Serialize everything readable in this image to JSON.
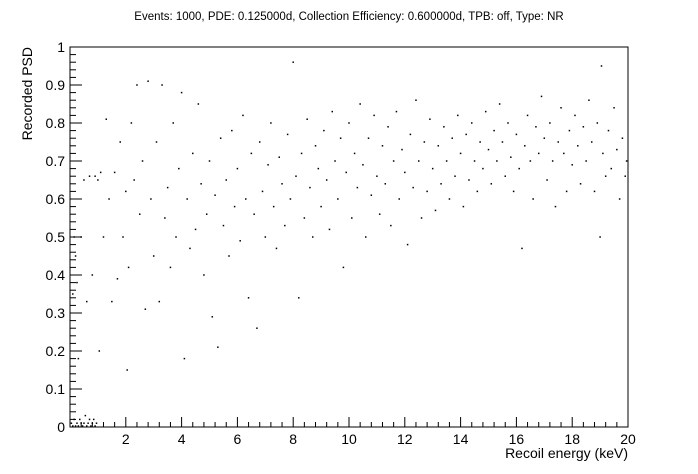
{
  "chart_data": {
    "type": "scatter",
    "title": "Events: 1000, PDE: 0.125000d, Collection Efficiency: 0.600000d, TPB: off, Type: NR",
    "xlabel": "Recoil energy (keV)",
    "ylabel": "Recorded PSD",
    "xlim": [
      0,
      20
    ],
    "ylim": [
      0,
      1
    ],
    "x_ticks": [
      {
        "value": 2,
        "label": "2"
      },
      {
        "value": 4,
        "label": "4"
      },
      {
        "value": 6,
        "label": "6"
      },
      {
        "value": 8,
        "label": "8"
      },
      {
        "value": 10,
        "label": "10"
      },
      {
        "value": 12,
        "label": "12"
      },
      {
        "value": 14,
        "label": "14"
      },
      {
        "value": 16,
        "label": "16"
      },
      {
        "value": 18,
        "label": "18"
      },
      {
        "value": 20,
        "label": "20"
      }
    ],
    "y_ticks": [
      {
        "value": 0,
        "label": "0"
      },
      {
        "value": 0.1,
        "label": "0.1"
      },
      {
        "value": 0.2,
        "label": "0.2"
      },
      {
        "value": 0.3,
        "label": "0.3"
      },
      {
        "value": 0.4,
        "label": "0.4"
      },
      {
        "value": 0.5,
        "label": "0.5"
      },
      {
        "value": 0.6,
        "label": "0.6"
      },
      {
        "value": 0.7,
        "label": "0.7"
      },
      {
        "value": 0.8,
        "label": "0.8"
      },
      {
        "value": 0.9,
        "label": "0.9"
      },
      {
        "value": 1,
        "label": "1"
      }
    ],
    "grid": false,
    "legend": "none",
    "marker_color": "#000000",
    "series": [
      {
        "points": [
          [
            0.05,
            0.01
          ],
          [
            0.1,
            0.0
          ],
          [
            0.15,
            0.02
          ],
          [
            0.2,
            0.0
          ],
          [
            0.25,
            0.01
          ],
          [
            0.3,
            0.0
          ],
          [
            0.35,
            0.02
          ],
          [
            0.4,
            0.01
          ],
          [
            0.45,
            0.0
          ],
          [
            0.5,
            0.01
          ],
          [
            0.55,
            0.03
          ],
          [
            0.6,
            0.0
          ],
          [
            0.65,
            0.01
          ],
          [
            0.7,
            0.02
          ],
          [
            0.75,
            0.0
          ],
          [
            0.8,
            0.01
          ],
          [
            0.85,
            0.02
          ],
          [
            0.9,
            0.0
          ],
          [
            0.95,
            0.01
          ],
          [
            0.1,
            0.35
          ],
          [
            0.15,
            0.5
          ],
          [
            0.2,
            0.45
          ],
          [
            0.25,
            0.38
          ],
          [
            0.3,
            0.18
          ],
          [
            0.4,
            0.5
          ],
          [
            0.5,
            0.65
          ],
          [
            0.6,
            0.33
          ],
          [
            0.7,
            0.66
          ],
          [
            0.8,
            0.4
          ],
          [
            0.9,
            0.66
          ],
          [
            1.0,
            0.65
          ],
          [
            1.05,
            0.2
          ],
          [
            1.1,
            0.67
          ],
          [
            1.2,
            0.5
          ],
          [
            1.3,
            0.81
          ],
          [
            1.4,
            0.6
          ],
          [
            1.5,
            0.33
          ],
          [
            1.6,
            0.67
          ],
          [
            1.7,
            0.39
          ],
          [
            1.8,
            0.75
          ],
          [
            1.9,
            0.5
          ],
          [
            2.0,
            0.62
          ],
          [
            2.05,
            0.15
          ],
          [
            2.1,
            0.42
          ],
          [
            2.2,
            0.8
          ],
          [
            2.3,
            0.65
          ],
          [
            2.4,
            0.9
          ],
          [
            2.5,
            0.56
          ],
          [
            2.6,
            0.7
          ],
          [
            2.7,
            0.31
          ],
          [
            2.8,
            0.91
          ],
          [
            2.9,
            0.6
          ],
          [
            3.0,
            0.45
          ],
          [
            3.1,
            0.75
          ],
          [
            3.2,
            0.33
          ],
          [
            3.3,
            0.9
          ],
          [
            3.4,
            0.55
          ],
          [
            3.5,
            0.63
          ],
          [
            3.6,
            0.42
          ],
          [
            3.7,
            0.8
          ],
          [
            3.8,
            0.5
          ],
          [
            3.9,
            0.68
          ],
          [
            4.0,
            0.88
          ],
          [
            4.1,
            0.18
          ],
          [
            4.2,
            0.6
          ],
          [
            4.3,
            0.47
          ],
          [
            4.4,
            0.72
          ],
          [
            4.5,
            0.52
          ],
          [
            4.6,
            0.85
          ],
          [
            4.7,
            0.64
          ],
          [
            4.8,
            0.4
          ],
          [
            4.9,
            0.56
          ],
          [
            5.0,
            0.7
          ],
          [
            5.1,
            0.29
          ],
          [
            5.2,
            0.61
          ],
          [
            5.3,
            0.21
          ],
          [
            5.4,
            0.76
          ],
          [
            5.5,
            0.53
          ],
          [
            5.6,
            0.65
          ],
          [
            5.7,
            0.45
          ],
          [
            5.8,
            0.78
          ],
          [
            5.9,
            0.58
          ],
          [
            6.0,
            0.68
          ],
          [
            6.1,
            0.49
          ],
          [
            6.2,
            0.82
          ],
          [
            6.3,
            0.6
          ],
          [
            6.4,
            0.34
          ],
          [
            6.5,
            0.72
          ],
          [
            6.6,
            0.56
          ],
          [
            6.7,
            0.26
          ],
          [
            6.8,
            0.75
          ],
          [
            6.9,
            0.62
          ],
          [
            7.0,
            0.5
          ],
          [
            7.1,
            0.69
          ],
          [
            7.2,
            0.8
          ],
          [
            7.3,
            0.58
          ],
          [
            7.4,
            0.47
          ],
          [
            7.5,
            0.71
          ],
          [
            7.6,
            0.64
          ],
          [
            7.7,
            0.53
          ],
          [
            7.8,
            0.77
          ],
          [
            7.9,
            0.6
          ],
          [
            8.0,
            0.96
          ],
          [
            8.1,
            0.66
          ],
          [
            8.2,
            0.34
          ],
          [
            8.3,
            0.72
          ],
          [
            8.4,
            0.55
          ],
          [
            8.5,
            0.81
          ],
          [
            8.6,
            0.63
          ],
          [
            8.7,
            0.5
          ],
          [
            8.8,
            0.74
          ],
          [
            8.9,
            0.68
          ],
          [
            9.0,
            0.58
          ],
          [
            9.1,
            0.78
          ],
          [
            9.2,
            0.65
          ],
          [
            9.3,
            0.52
          ],
          [
            9.4,
            0.83
          ],
          [
            9.5,
            0.7
          ],
          [
            9.6,
            0.6
          ],
          [
            9.7,
            0.76
          ],
          [
            9.8,
            0.42
          ],
          [
            9.9,
            0.67
          ],
          [
            10.0,
            0.8
          ],
          [
            10.1,
            0.55
          ],
          [
            10.2,
            0.72
          ],
          [
            10.3,
            0.63
          ],
          [
            10.4,
            0.85
          ],
          [
            10.5,
            0.69
          ],
          [
            10.6,
            0.5
          ],
          [
            10.7,
            0.76
          ],
          [
            10.8,
            0.61
          ],
          [
            10.9,
            0.82
          ],
          [
            11.0,
            0.66
          ],
          [
            11.1,
            0.56
          ],
          [
            11.2,
            0.74
          ],
          [
            11.3,
            0.64
          ],
          [
            11.4,
            0.79
          ],
          [
            11.5,
            0.53
          ],
          [
            11.6,
            0.7
          ],
          [
            11.7,
            0.83
          ],
          [
            11.8,
            0.6
          ],
          [
            11.9,
            0.73
          ],
          [
            12.0,
            0.67
          ],
          [
            12.1,
            0.48
          ],
          [
            12.2,
            0.77
          ],
          [
            12.3,
            0.63
          ],
          [
            12.4,
            0.86
          ],
          [
            12.5,
            0.7
          ],
          [
            12.6,
            0.55
          ],
          [
            12.7,
            0.75
          ],
          [
            12.8,
            0.62
          ],
          [
            12.9,
            0.81
          ],
          [
            13.0,
            0.68
          ],
          [
            13.1,
            0.57
          ],
          [
            13.2,
            0.74
          ],
          [
            13.3,
            0.64
          ],
          [
            13.4,
            0.79
          ],
          [
            13.5,
            0.7
          ],
          [
            13.6,
            0.6
          ],
          [
            13.7,
            0.76
          ],
          [
            13.8,
            0.66
          ],
          [
            13.9,
            0.82
          ],
          [
            14.0,
            0.72
          ],
          [
            14.1,
            0.58
          ],
          [
            14.2,
            0.77
          ],
          [
            14.3,
            0.65
          ],
          [
            14.4,
            0.8
          ],
          [
            14.5,
            0.7
          ],
          [
            14.6,
            0.62
          ],
          [
            14.7,
            0.75
          ],
          [
            14.8,
            0.68
          ],
          [
            14.9,
            0.83
          ],
          [
            15.0,
            0.73
          ],
          [
            15.1,
            0.64
          ],
          [
            15.2,
            0.78
          ],
          [
            15.3,
            0.7
          ],
          [
            15.4,
            0.85
          ],
          [
            15.5,
            0.75
          ],
          [
            15.6,
            0.66
          ],
          [
            15.7,
            0.8
          ],
          [
            15.8,
            0.71
          ],
          [
            15.9,
            0.62
          ],
          [
            16.0,
            0.77
          ],
          [
            16.1,
            0.68
          ],
          [
            16.2,
            0.47
          ],
          [
            16.3,
            0.74
          ],
          [
            16.4,
            0.82
          ],
          [
            16.5,
            0.7
          ],
          [
            16.6,
            0.6
          ],
          [
            16.7,
            0.79
          ],
          [
            16.8,
            0.72
          ],
          [
            16.9,
            0.87
          ],
          [
            17.0,
            0.76
          ],
          [
            17.1,
            0.65
          ],
          [
            17.2,
            0.8
          ],
          [
            17.3,
            0.7
          ],
          [
            17.4,
            0.58
          ],
          [
            17.5,
            0.75
          ],
          [
            17.6,
            0.84
          ],
          [
            17.7,
            0.72
          ],
          [
            17.8,
            0.62
          ],
          [
            17.9,
            0.78
          ],
          [
            18.0,
            0.69
          ],
          [
            18.1,
            0.82
          ],
          [
            18.2,
            0.74
          ],
          [
            18.3,
            0.64
          ],
          [
            18.4,
            0.79
          ],
          [
            18.5,
            0.7
          ],
          [
            18.6,
            0.86
          ],
          [
            18.7,
            0.75
          ],
          [
            18.8,
            0.62
          ],
          [
            18.9,
            0.8
          ],
          [
            19.0,
            0.5
          ],
          [
            19.05,
            0.95
          ],
          [
            19.1,
            0.72
          ],
          [
            19.2,
            0.66
          ],
          [
            19.3,
            0.78
          ],
          [
            19.4,
            0.68
          ],
          [
            19.5,
            0.84
          ],
          [
            19.6,
            0.73
          ],
          [
            19.7,
            0.6
          ],
          [
            19.8,
            0.76
          ],
          [
            19.9,
            0.66
          ],
          [
            19.95,
            0.7
          ]
        ]
      }
    ]
  }
}
